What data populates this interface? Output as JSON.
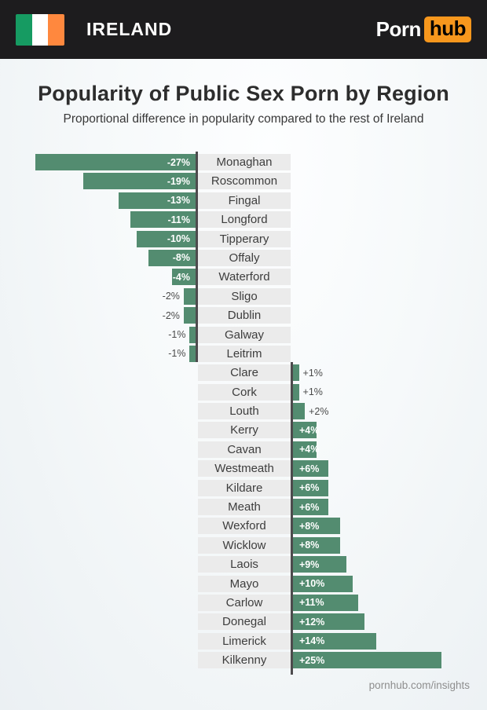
{
  "header": {
    "country_label": "IRELAND",
    "flag": {
      "green": "#169b62",
      "white": "#ffffff",
      "orange": "#ff883e"
    },
    "logo": {
      "text_left": "Porn",
      "text_right": "hub",
      "badge_color": "#f7971d"
    }
  },
  "chart_data": {
    "type": "bar",
    "orientation": "horizontal-diverging",
    "title": "Popularity of Public Sex Porn by Region",
    "subtitle": "Proportional difference in popularity compared to the rest of Ireland",
    "unit": "%",
    "xlim": [
      -27,
      25
    ],
    "categories": [
      "Monaghan",
      "Roscommon",
      "Fingal",
      "Longford",
      "Tipperary",
      "Offaly",
      "Waterford",
      "Sligo",
      "Dublin",
      "Galway",
      "Leitrim",
      "Clare",
      "Cork",
      "Louth",
      "Kerry",
      "Cavan",
      "Westmeath",
      "Kildare",
      "Meath",
      "Wexford",
      "Wicklow",
      "Laois",
      "Mayo",
      "Carlow",
      "Donegal",
      "Limerick",
      "Kilkenny"
    ],
    "values": [
      -27,
      -19,
      -13,
      -11,
      -10,
      -8,
      -4,
      -2,
      -2,
      -1,
      -1,
      1,
      1,
      2,
      4,
      4,
      6,
      6,
      6,
      8,
      8,
      9,
      10,
      11,
      12,
      14,
      25
    ],
    "labels": [
      "-27%",
      "-19%",
      "-13%",
      "-11%",
      "-10%",
      "-8%",
      "-4%",
      "-2%",
      "-2%",
      "-1%",
      "-1%",
      "+1%",
      "+1%",
      "+2%",
      "+4%",
      "+4%",
      "+6%",
      "+6%",
      "+6%",
      "+8%",
      "+8%",
      "+9%",
      "+10%",
      "+11%",
      "+12%",
      "+14%",
      "+25%"
    ],
    "inside_label_min_abs": 4,
    "bar_color": "#538c70",
    "axis_color": "#4d4b4d",
    "row_label_bg": "#ebebeb",
    "grid": false,
    "legend": false
  },
  "footer": {
    "credit": "pornhub.com/insights"
  }
}
